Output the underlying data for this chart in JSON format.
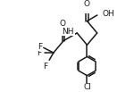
{
  "bg_color": "#ffffff",
  "line_color": "#1a1a1a",
  "text_color": "#1a1a1a",
  "bond_lw": 1.1,
  "font_size": 6.5,
  "fig_width": 1.5,
  "fig_height": 1.03,
  "dpi": 100,
  "xlim": [
    0,
    10
  ],
  "ylim": [
    0,
    6.8
  ]
}
